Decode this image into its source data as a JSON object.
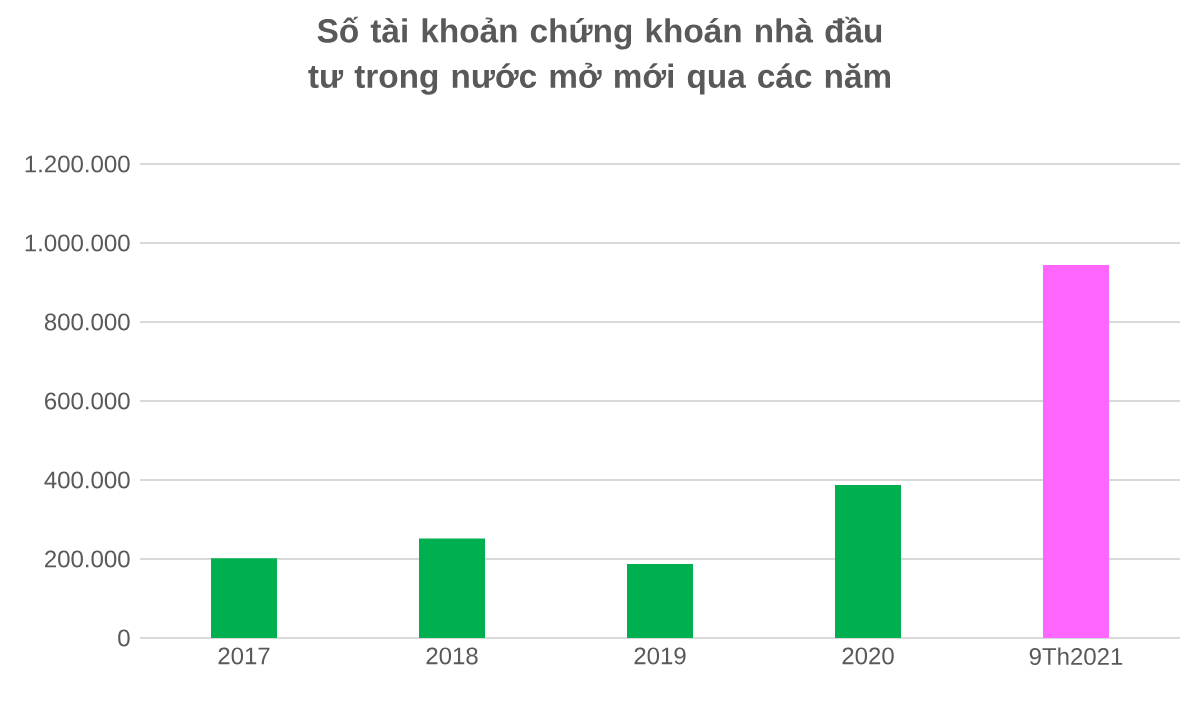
{
  "chart_data": {
    "type": "bar",
    "title": "Số tài khoản chứng khoán nhà đầu tư trong nước mở mới qua các năm",
    "categories": [
      "2017",
      "2018",
      "2019",
      "2020",
      "9Th2021"
    ],
    "values": [
      202000,
      252000,
      187000,
      387000,
      944000
    ],
    "colors": [
      "#00b050",
      "#00b050",
      "#00b050",
      "#00b050",
      "#ff66ff"
    ],
    "ylim": [
      0,
      1200000
    ],
    "yticks": [
      0,
      {
        "value": 200000,
        "label": "200.000"
      },
      {
        "value": 400000,
        "label": "400.000"
      },
      {
        "value": 600000,
        "label": "600.000"
      },
      {
        "value": 800000,
        "label": "800.000"
      },
      {
        "value": 1000000,
        "label": "1.000.000"
      },
      {
        "value": 1200000,
        "label": "1.200.000"
      }
    ],
    "grid": "y"
  }
}
